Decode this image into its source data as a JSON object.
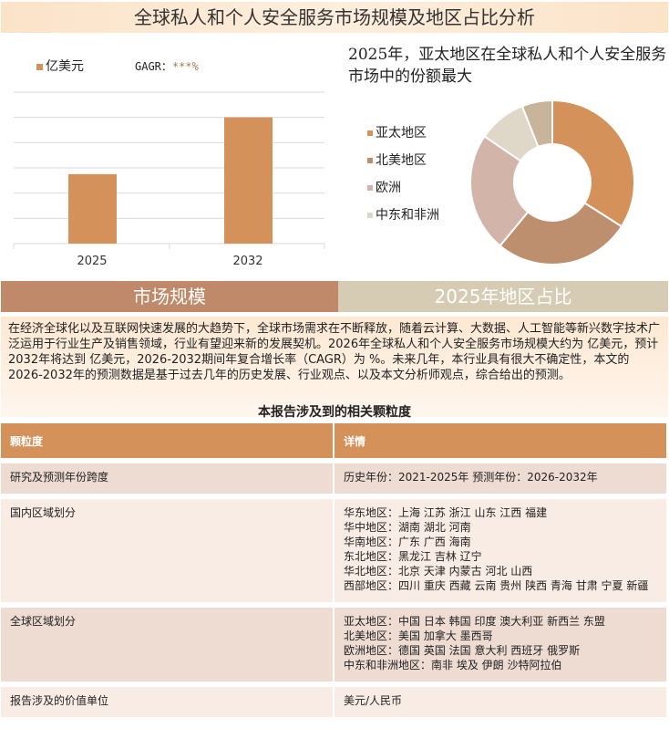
{
  "title": "全球私人和个人安全服务市场规模及地区占比分析",
  "bar_chart": {
    "legend": "亿美元",
    "gagr_label": "GAGR：",
    "gagr_value": "***%",
    "color": "#d4915a"
  },
  "pie_heading": "2025年，亚太地区在全球私人和个人安全服务市场中的份额最大",
  "chart_data": [
    {
      "type": "bar",
      "categories": [
        "2025",
        "2032"
      ],
      "values": [
        2.75,
        5.0
      ],
      "ylim": [
        0,
        6
      ],
      "grid": true,
      "legend": "亿美元",
      "legend_placement": "top-left"
    },
    {
      "type": "pie",
      "donut": true,
      "categories": [
        "亚太地区",
        "北美地区",
        "欧洲",
        "中东和非洲",
        ""
      ],
      "values": [
        34,
        27,
        23.5,
        9.5,
        6
      ],
      "colors": [
        "#d4915a",
        "#bd8f6e",
        "#d3b4a8",
        "#dfd8c8",
        "#c8b49a"
      ],
      "legend_placement": "left"
    }
  ],
  "bands": {
    "left": "市场规模",
    "right": "2025年地区占比",
    "left_color": "#c08a6a",
    "right_color": "#d6ccb4"
  },
  "description": "在经济全球化以及互联网快速发展的大趋势下，全球市场需求在不断释放，随着云计算、大数据、人工智能等新兴数字技术广泛运用于行业生产及销售领域，行业有望迎来新的发展契机。2026年全球私人和个人安全服务市场规模大约为 亿美元，预计2032年将达到 亿美元，2026-2032期间年复合增长率（CAGR）为 %。未来几年，本行业具有很大不确定性，本文的2026-2032年的预测数据是基于过去几年的历史发展、行业观点、以及本文分析师观点，综合给出的预测。",
  "table": {
    "caption": "本报告涉及到的相关颗粒度",
    "headers": [
      "颗粒度",
      "详情"
    ],
    "rows": [
      {
        "k": "研究及预测年份跨度",
        "v": [
          "历史年份：2021-2025年 预测年份：2026-2032年"
        ]
      },
      {
        "k": "国内区域划分",
        "v": [
          "华东地区：上海  江苏  浙江  山东  江西  福建",
          "华中地区：湖南  湖北  河南",
          "华南地区：广东  广西  海南",
          "东北地区：黑龙江  吉林  辽宁",
          "华北地区：北京  天津  内蒙古  河北  山西",
          "西部地区：四川  重庆  西藏  云南  贵州  陕西  青海  甘肃  宁夏  新疆"
        ]
      },
      {
        "k": "全球区域划分",
        "v": [
          "亚太地区：中国  日本  韩国  印度  澳大利亚  新西兰  东盟",
          "北美地区：美国  加拿大  墨西哥",
          "欧洲地区：德国  英国  法国  意大利  西班牙  俄罗斯",
          "中东和非洲地区：南非  埃及  伊朗  沙特阿拉伯"
        ]
      },
      {
        "k": "报告涉及的价值单位",
        "v": [
          "美元/人民币"
        ]
      }
    ]
  }
}
